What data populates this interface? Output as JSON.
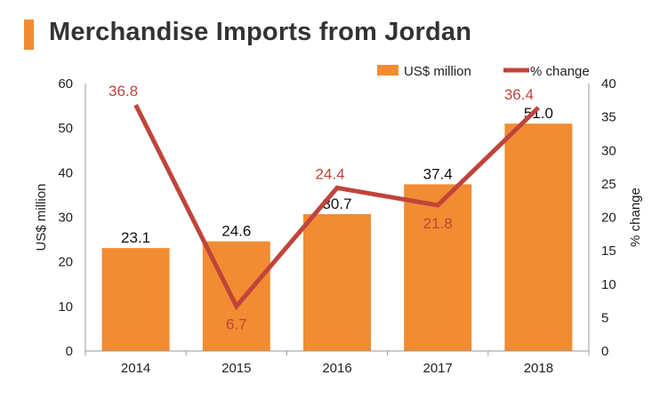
{
  "page": {
    "title": "Merchandise Imports from Jordan"
  },
  "colors": {
    "accent": "#f28c32",
    "bar": "#f28c32",
    "line": "#c0443b",
    "axis": "#999999"
  },
  "chart_data": {
    "type": "bar",
    "title": "Merchandise Imports from Jordan",
    "categories": [
      "2014",
      "2015",
      "2016",
      "2017",
      "2018"
    ],
    "series": [
      {
        "name": "US$ million",
        "type": "bar",
        "axis": "left",
        "values": [
          23.1,
          24.6,
          30.7,
          37.4,
          51.0
        ],
        "labels": [
          "23.1",
          "24.6",
          "30.7",
          "37.4",
          "51.0"
        ]
      },
      {
        "name": "% change",
        "type": "line",
        "axis": "right",
        "values": [
          36.8,
          6.7,
          24.4,
          21.8,
          36.4
        ],
        "labels": [
          "36.8",
          "6.7",
          "24.4",
          "21.8",
          "36.4"
        ]
      }
    ],
    "xlabel": "",
    "ylabel": "US$ million",
    "ylabel_right": "% change",
    "ylim": [
      0,
      60
    ],
    "ylim_right": [
      0,
      40
    ],
    "yticks": [
      "0",
      "10",
      "20",
      "30",
      "40",
      "50",
      "60"
    ],
    "yticks_right": [
      "0",
      "5",
      "10",
      "15",
      "20",
      "25",
      "30",
      "35",
      "40"
    ],
    "grid": false,
    "legend": "top-right"
  }
}
